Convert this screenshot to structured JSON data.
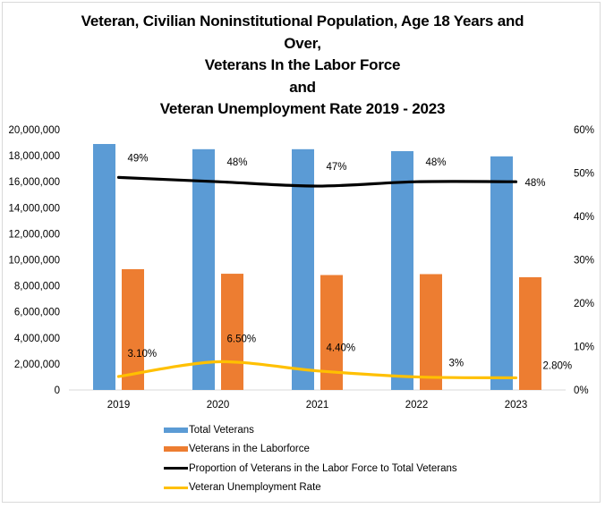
{
  "chart_data": {
    "type": "bar",
    "title_lines": [
      "Veteran, Civilian Noninstitutional Population, Age 18 Years and",
      "Over,",
      "Veterans In the Labor Force",
      "and",
      "Veteran Unemployment Rate 2019 - 2023"
    ],
    "categories": [
      "2019",
      "2020",
      "2021",
      "2022",
      "2023"
    ],
    "xlabel": "",
    "ylabel": "",
    "y_left": {
      "range": [
        0,
        20000000
      ],
      "ticks": [
        "0",
        "2,000,000",
        "4,000,000",
        "6,000,000",
        "8,000,000",
        "10,000,000",
        "12,000,000",
        "14,000,000",
        "16,000,000",
        "18,000,000",
        "20,000,000"
      ]
    },
    "y_right": {
      "range": [
        0,
        0.6
      ],
      "ticks": [
        "0%",
        "10%",
        "20%",
        "30%",
        "40%",
        "50%",
        "60%"
      ]
    },
    "grid": false,
    "legend_position": "bottom",
    "series": [
      {
        "name": "Total Veterans",
        "kind": "bar",
        "axis": "left",
        "color": "#5B9BD5",
        "values": [
          18900000,
          18500000,
          18500000,
          18350000,
          17950000
        ]
      },
      {
        "name": "Veterans in the Laborforce",
        "kind": "bar",
        "axis": "left",
        "color": "#ED7D31",
        "values": [
          9280000,
          8930000,
          8830000,
          8900000,
          8660000
        ]
      },
      {
        "name": "Proportion of Veterans in the Labor Force to Total Veterans",
        "kind": "line",
        "axis": "right",
        "color": "#000000",
        "values": [
          0.49,
          0.48,
          0.47,
          0.48,
          0.48
        ],
        "labels": [
          "49%",
          "48%",
          "47%",
          "48%",
          "48%"
        ]
      },
      {
        "name": "Veteran Unemployment Rate",
        "kind": "line",
        "axis": "right",
        "color": "#FFC000",
        "values": [
          0.031,
          0.065,
          0.044,
          0.03,
          0.028
        ],
        "labels": [
          "3.10%",
          "6.50%",
          "4.40%",
          "3%",
          "2.80%"
        ]
      }
    ]
  }
}
